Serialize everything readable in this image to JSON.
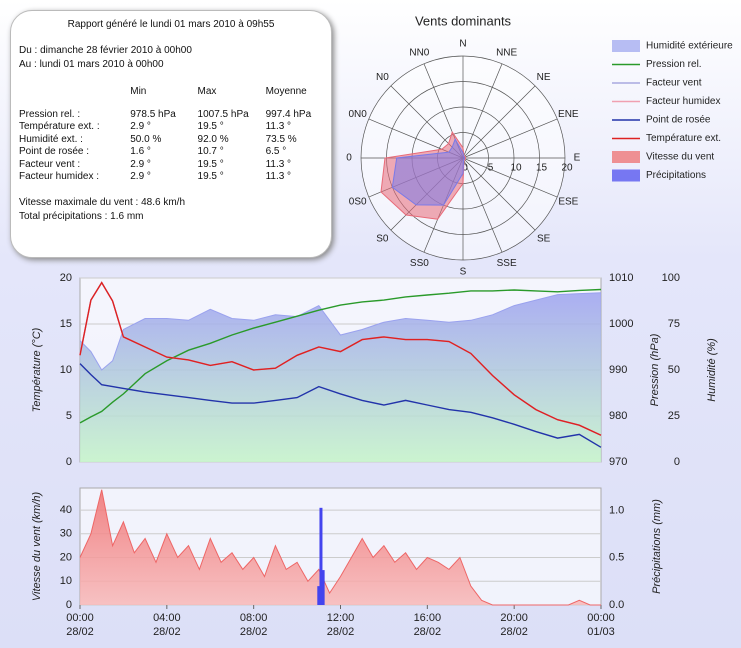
{
  "report": {
    "title": "Rapport généré le lundi 01 mars 2010 à 09h55",
    "from": "Du : dimanche 28 février 2010 à 00h00",
    "to": "Au : lundi 01 mars 2010 à 00h00",
    "table": {
      "header": [
        "Min",
        "Max",
        "Moyenne"
      ],
      "rows": [
        [
          "Pression rel. :",
          "978.5 hPa",
          "1007.5 hPa",
          "997.4 hPa"
        ],
        [
          "Température ext. :",
          "2.9 °",
          "19.5 °",
          "11.3 °"
        ],
        [
          "Humidité ext. :",
          "50.0 %",
          "92.0 %",
          "73.5 %"
        ],
        [
          "Point de rosée :",
          "1.6 °",
          "10.7 °",
          "6.5 °"
        ],
        [
          "Facteur vent :",
          "2.9 °",
          "19.5 °",
          "11.3 °"
        ],
        [
          "Facteur humidex :",
          "2.9 °",
          "19.5 °",
          "11.3 °"
        ]
      ]
    },
    "footer": [
      "Vitesse maximale du vent : 48.6 km/h",
      "Total précipitations : 1.6 mm"
    ]
  },
  "chart_data": [
    {
      "type": "polar",
      "title": "Vents dominants",
      "categories": [
        "N",
        "NNE",
        "NE",
        "ENE",
        "E",
        "ESE",
        "SE",
        "SSE",
        "S",
        "SS0",
        "S0",
        "0S0",
        "0",
        "0N0",
        "N0",
        "NN0"
      ],
      "rlim": [
        0,
        20
      ],
      "rticks": [
        0,
        5,
        10,
        15,
        20
      ],
      "series": [
        {
          "color": "#e86a78",
          "values": [
            2,
            0.5,
            0.5,
            0.5,
            0.5,
            0.5,
            0.5,
            0.5,
            5,
            13,
            15.8,
            17.4,
            15.3,
            4.5,
            4,
            5.5
          ]
        },
        {
          "color": "#7a7ae8",
          "values": [
            1,
            0.3,
            0.3,
            0.3,
            0.3,
            0.3,
            0.3,
            0.3,
            3,
            10,
            13,
            15,
            13,
            3,
            3,
            4
          ]
        }
      ]
    },
    {
      "type": "line",
      "xlim": [
        0,
        24
      ],
      "x": [
        0,
        0.5,
        1,
        1.5,
        2,
        3,
        4,
        5,
        6,
        7,
        8,
        9,
        10,
        11,
        12,
        13,
        14,
        15,
        16,
        17,
        18,
        19,
        20,
        21,
        22,
        23,
        24
      ],
      "ylabel": "Température (°C)",
      "ylim": [
        0,
        20
      ],
      "yticks": [
        0,
        5,
        10,
        15,
        20
      ],
      "y2label": "Pression (hPa)",
      "y2lim": [
        970,
        1010
      ],
      "y2ticks": [
        970,
        980,
        990,
        1000,
        1010
      ],
      "y3label": "Humidité (%)",
      "y3lim": [
        0,
        100
      ],
      "y3ticks": [
        0,
        25,
        50,
        75,
        100
      ],
      "grid": true,
      "series": [
        {
          "name": "Humidité extérieure",
          "kind": "area",
          "axis": "y3",
          "color": "#9aa2ee",
          "values": [
            66,
            60,
            50,
            55,
            72,
            78,
            78,
            77,
            83,
            78,
            77,
            80,
            79,
            85,
            69,
            72,
            76,
            78,
            77,
            76,
            77,
            80,
            85,
            88,
            91,
            91.5,
            92
          ]
        },
        {
          "name": "Pression rel.",
          "kind": "line",
          "axis": "y2",
          "color": "#2a9a2a",
          "values": [
            978.5,
            979.8,
            981,
            983,
            984.8,
            989.2,
            992,
            994.3,
            995.8,
            997.6,
            999.1,
            1000.4,
            1001.7,
            1003,
            1004.1,
            1004.8,
            1005.2,
            1005.9,
            1006.3,
            1006.7,
            1007.2,
            1007.2,
            1007.4,
            1007.2,
            1007,
            1007.3,
            1007.5
          ]
        },
        {
          "name": "Facteur vent",
          "kind": "line",
          "axis": "y",
          "color": "#a8a8e0",
          "values": [
            11.6,
            17.6,
            19.5,
            17.5,
            13.6,
            12.5,
            11.4,
            11.1,
            10.5,
            10.9,
            10,
            10.2,
            11.6,
            12.5,
            12,
            13.3,
            13.6,
            13.3,
            13.3,
            13.1,
            11.8,
            9.4,
            7.3,
            5.7,
            4.6,
            4,
            2.9
          ]
        },
        {
          "name": "Facteur humidex",
          "kind": "line",
          "axis": "y",
          "color": "#f0a0b0",
          "values": [
            11.6,
            17.6,
            19.5,
            17.5,
            13.6,
            12.5,
            11.4,
            11.1,
            10.5,
            10.9,
            10,
            10.2,
            11.6,
            12.5,
            12,
            13.3,
            13.6,
            13.3,
            13.3,
            13.1,
            11.8,
            9.4,
            7.3,
            5.7,
            4.6,
            4,
            2.9
          ]
        },
        {
          "name": "Point de rosée",
          "kind": "line",
          "axis": "y",
          "color": "#2233aa",
          "values": [
            10.7,
            9.5,
            8.4,
            8.2,
            8,
            7.6,
            7.3,
            7,
            6.7,
            6.4,
            6.4,
            6.7,
            7,
            8.2,
            7.4,
            6.7,
            6.2,
            6.7,
            6.2,
            5.7,
            5.4,
            4.8,
            4.1,
            3.3,
            2.6,
            3,
            1.6
          ]
        },
        {
          "name": "Température ext.",
          "kind": "line",
          "axis": "y",
          "color": "#dd2222",
          "values": [
            11.6,
            17.6,
            19.5,
            17.5,
            13.6,
            12.5,
            11.4,
            11.1,
            10.5,
            10.9,
            10,
            10.2,
            11.6,
            12.5,
            12,
            13.3,
            13.6,
            13.3,
            13.3,
            13.1,
            11.8,
            9.4,
            7.3,
            5.7,
            4.6,
            4,
            2.9
          ]
        }
      ]
    },
    {
      "type": "line",
      "xlim": [
        0,
        24
      ],
      "x": [
        0,
        0.5,
        1,
        1.5,
        2,
        2.5,
        3,
        3.5,
        4,
        4.5,
        5,
        5.5,
        6,
        6.5,
        7,
        7.5,
        8,
        8.5,
        9,
        9.5,
        10,
        10.5,
        11,
        11.5,
        12,
        12.5,
        13,
        13.5,
        14,
        14.5,
        15,
        15.5,
        16,
        16.5,
        17,
        17.5,
        18,
        18.5,
        19,
        19.5,
        20,
        20.5,
        21,
        21.5,
        22,
        22.5,
        23,
        23.5,
        24
      ],
      "xticks": [
        {
          "value": 0,
          "label": "00:00"
        },
        {
          "value": 4,
          "label": "04:00"
        },
        {
          "value": 8,
          "label": "08:00"
        },
        {
          "value": 12,
          "label": "12:00"
        },
        {
          "value": 16,
          "label": "16:00"
        },
        {
          "value": 20,
          "label": "20:00"
        },
        {
          "value": 24,
          "label": "00:00"
        }
      ],
      "xtick_dates": [
        "28/02",
        "28/02",
        "28/02",
        "28/02",
        "28/02",
        "28/02",
        "01/03"
      ],
      "ylabel": "Vitesse du vent (km/h)",
      "ylim": [
        0,
        49.3
      ],
      "yticks": [
        0,
        10,
        20,
        30,
        40
      ],
      "y2label": "Précipitations (mm)",
      "y2lim": [
        0,
        1.24
      ],
      "y2ticks": [
        {
          "value": 0,
          "label": "0.0"
        },
        {
          "value": 0.5,
          "label": "0.5"
        },
        {
          "value": 1,
          "label": "1.0"
        }
      ],
      "grid": true,
      "series": [
        {
          "name": "Vitesse du vent",
          "kind": "area",
          "axis": "y",
          "color": "#ee6666",
          "values": [
            20,
            30,
            48.6,
            25,
            35,
            22,
            28,
            18,
            30,
            20,
            25,
            15,
            28,
            18,
            22,
            15,
            20,
            12,
            25,
            15,
            18,
            10,
            15,
            5,
            12,
            20,
            28,
            20,
            25,
            18,
            22,
            15,
            20,
            18,
            15,
            20,
            8,
            2,
            0,
            0,
            0,
            0,
            0,
            0,
            0,
            0,
            2,
            0,
            0
          ]
        },
        {
          "name": "Précipitations",
          "kind": "bar",
          "axis": "y2",
          "color": "#4444ee",
          "x": [
            11,
            11.1,
            11.2
          ],
          "values": [
            0.2,
            1.03,
            0.37
          ]
        }
      ]
    }
  ]
}
